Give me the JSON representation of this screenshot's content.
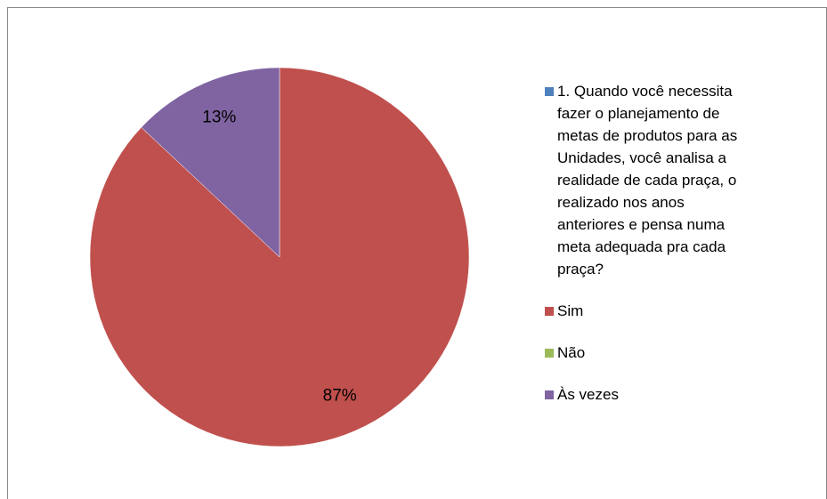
{
  "chart_data": {
    "type": "pie",
    "categories": [
      "1. Quando você necessita fazer o planejamento de metas de produtos para as Unidades, você analisa a realidade de cada praça, o realizado nos anos anteriores e pensa numa meta adequada pra cada praça?",
      "Sim",
      "Não",
      "Às vezes"
    ],
    "values": [
      0,
      87,
      0,
      13
    ],
    "value_labels": [
      null,
      "87%",
      null,
      "13%"
    ],
    "colors": [
      "#4f81bd",
      "#c0504d",
      "#9bbb59",
      "#8064a2"
    ],
    "legend": "right"
  }
}
